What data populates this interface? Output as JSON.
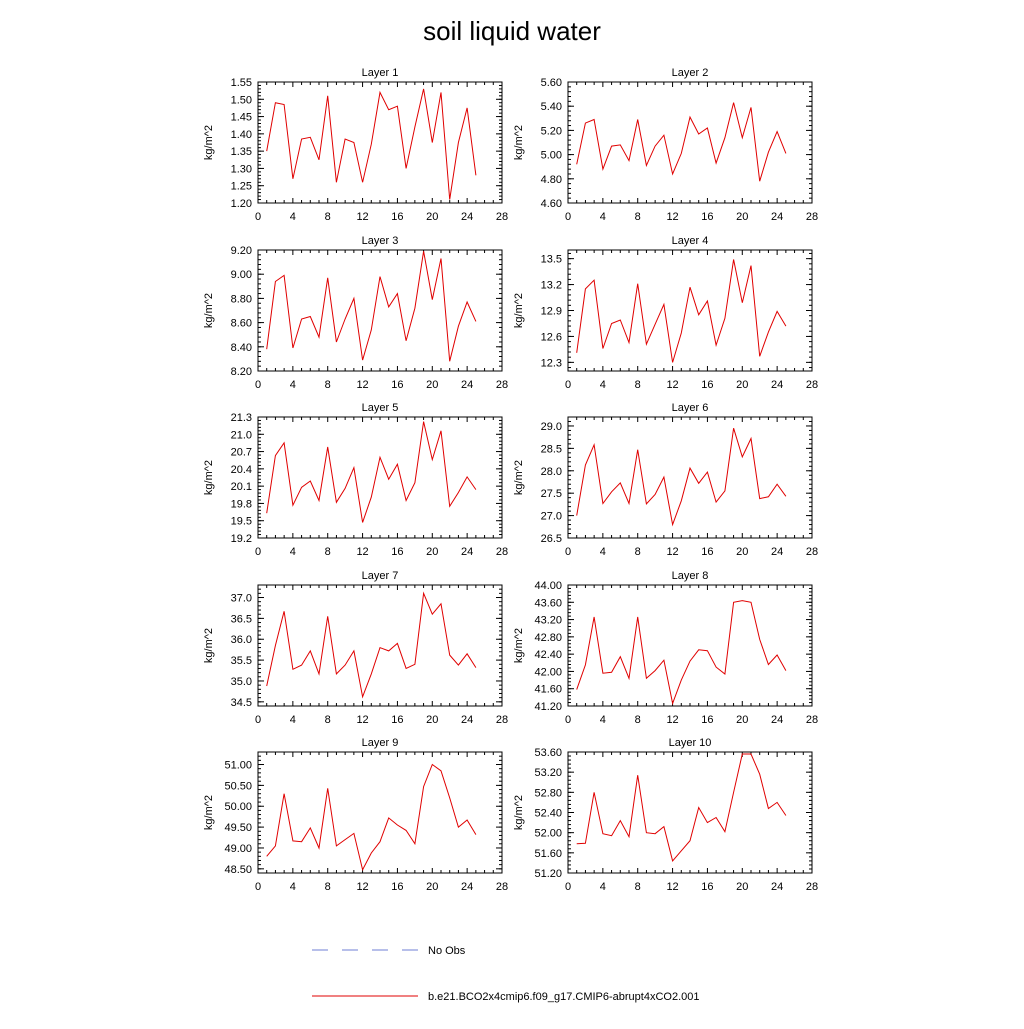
{
  "figure": {
    "title": "soil liquid water",
    "legend": [
      {
        "label": "No Obs",
        "color": "#6f7fd6",
        "style": "dashed"
      },
      {
        "label": "b.e21.BCO2x4cmip6.f09_g17.CMIP6-abrupt4xCO2.001",
        "color": "#e00000",
        "style": "solid"
      }
    ]
  },
  "chart_data": [
    {
      "type": "line",
      "title": "Layer 1",
      "ylabel": "kg/m^2",
      "xlim": [
        0,
        28
      ],
      "xticks": [
        "0",
        "4",
        "8",
        "12",
        "16",
        "20",
        "24",
        "28"
      ],
      "ylim": [
        1.2,
        1.55
      ],
      "yticks": [
        "1.20",
        "1.25",
        "1.30",
        "1.35",
        "1.40",
        "1.45",
        "1.50",
        "1.55"
      ],
      "series": [
        {
          "color": "#e00000",
          "x": [
            1,
            2,
            3,
            4,
            5,
            6,
            7,
            8,
            9,
            10,
            11,
            12,
            13,
            14,
            15,
            16,
            17,
            18,
            19,
            20,
            21,
            22,
            23,
            24,
            25
          ],
          "y": [
            1.35,
            1.49,
            1.485,
            1.27,
            1.385,
            1.39,
            1.325,
            1.51,
            1.26,
            1.385,
            1.375,
            1.26,
            1.37,
            1.52,
            1.47,
            1.48,
            1.3,
            1.42,
            1.53,
            1.375,
            1.52,
            1.21,
            1.375,
            1.475,
            1.28
          ]
        }
      ]
    },
    {
      "type": "line",
      "title": "Layer 2",
      "ylabel": "kg/m^2",
      "xlim": [
        0,
        28
      ],
      "xticks": [
        "0",
        "4",
        "8",
        "12",
        "16",
        "20",
        "24",
        "28"
      ],
      "ylim": [
        4.6,
        5.6
      ],
      "yticks": [
        "4.60",
        "4.80",
        "5.00",
        "5.20",
        "5.40",
        "5.60"
      ],
      "series": [
        {
          "color": "#e00000",
          "x": [
            1,
            2,
            3,
            4,
            5,
            6,
            7,
            8,
            9,
            10,
            11,
            12,
            13,
            14,
            15,
            16,
            17,
            18,
            19,
            20,
            21,
            22,
            23,
            24,
            25
          ],
          "y": [
            4.92,
            5.26,
            5.29,
            4.88,
            5.07,
            5.08,
            4.95,
            5.29,
            4.91,
            5.07,
            5.16,
            4.84,
            5.01,
            5.31,
            5.17,
            5.22,
            4.93,
            5.14,
            5.43,
            5.14,
            5.39,
            4.78,
            5.02,
            5.19,
            5.01
          ]
        }
      ]
    },
    {
      "type": "line",
      "title": "Layer 3",
      "ylabel": "kg/m^2",
      "xlim": [
        0,
        28
      ],
      "xticks": [
        "0",
        "4",
        "8",
        "12",
        "16",
        "20",
        "24",
        "28"
      ],
      "ylim": [
        8.2,
        9.2
      ],
      "yticks": [
        "8.20",
        "8.40",
        "8.60",
        "8.80",
        "9.00",
        "9.20"
      ],
      "series": [
        {
          "color": "#e00000",
          "x": [
            1,
            2,
            3,
            4,
            5,
            6,
            7,
            8,
            9,
            10,
            11,
            12,
            13,
            14,
            15,
            16,
            17,
            18,
            19,
            20,
            21,
            22,
            23,
            24,
            25
          ],
          "y": [
            8.38,
            8.94,
            8.99,
            8.39,
            8.63,
            8.65,
            8.48,
            8.97,
            8.44,
            8.63,
            8.8,
            8.29,
            8.54,
            8.98,
            8.73,
            8.84,
            8.45,
            8.72,
            9.19,
            8.79,
            9.13,
            8.28,
            8.57,
            8.77,
            8.61
          ]
        }
      ]
    },
    {
      "type": "line",
      "title": "Layer 4",
      "ylabel": "kg/m^2",
      "xlim": [
        0,
        28
      ],
      "xticks": [
        "0",
        "4",
        "8",
        "12",
        "16",
        "20",
        "24",
        "28"
      ],
      "ylim": [
        12.2,
        13.6
      ],
      "yticks": [
        "12.3",
        "12.6",
        "12.9",
        "13.2",
        "13.5"
      ],
      "series": [
        {
          "color": "#e00000",
          "x": [
            1,
            2,
            3,
            4,
            5,
            6,
            7,
            8,
            9,
            10,
            11,
            12,
            13,
            14,
            15,
            16,
            17,
            18,
            19,
            20,
            21,
            22,
            23,
            24,
            25
          ],
          "y": [
            12.41,
            13.15,
            13.25,
            12.46,
            12.75,
            12.79,
            12.53,
            13.21,
            12.51,
            12.74,
            12.97,
            12.3,
            12.64,
            13.17,
            12.85,
            13.01,
            12.5,
            12.81,
            13.49,
            12.99,
            13.42,
            12.37,
            12.65,
            12.89,
            12.72
          ]
        }
      ]
    },
    {
      "type": "line",
      "title": "Layer 5",
      "ylabel": "kg/m^2",
      "xlim": [
        0,
        28
      ],
      "xticks": [
        "0",
        "4",
        "8",
        "12",
        "16",
        "20",
        "24",
        "28"
      ],
      "ylim": [
        19.2,
        21.3
      ],
      "yticks": [
        "19.2",
        "19.5",
        "19.8",
        "20.1",
        "20.4",
        "20.7",
        "21.0",
        "21.3"
      ],
      "series": [
        {
          "color": "#e00000",
          "x": [
            1,
            2,
            3,
            4,
            5,
            6,
            7,
            8,
            9,
            10,
            11,
            12,
            13,
            14,
            15,
            16,
            17,
            18,
            19,
            20,
            21,
            22,
            23,
            24,
            25
          ],
          "y": [
            19.63,
            20.63,
            20.85,
            19.77,
            20.08,
            20.19,
            19.85,
            20.78,
            19.82,
            20.06,
            20.42,
            19.47,
            19.91,
            20.6,
            20.22,
            20.48,
            19.85,
            20.16,
            21.22,
            20.56,
            21.06,
            19.75,
            19.99,
            20.26,
            20.04
          ]
        }
      ]
    },
    {
      "type": "line",
      "title": "Layer 6",
      "ylabel": "kg/m^2",
      "xlim": [
        0,
        28
      ],
      "xticks": [
        "0",
        "4",
        "8",
        "12",
        "16",
        "20",
        "24",
        "28"
      ],
      "ylim": [
        26.5,
        29.2
      ],
      "yticks": [
        "26.5",
        "27.0",
        "27.5",
        "28.0",
        "28.5",
        "29.0"
      ],
      "series": [
        {
          "color": "#e00000",
          "x": [
            1,
            2,
            3,
            4,
            5,
            6,
            7,
            8,
            9,
            10,
            11,
            12,
            13,
            14,
            15,
            16,
            17,
            18,
            19,
            20,
            21,
            22,
            23,
            24,
            25
          ],
          "y": [
            27.0,
            28.13,
            28.58,
            27.27,
            27.53,
            27.73,
            27.27,
            28.47,
            27.26,
            27.47,
            27.86,
            26.8,
            27.33,
            28.06,
            27.72,
            27.97,
            27.3,
            27.55,
            28.95,
            28.31,
            28.72,
            27.38,
            27.42,
            27.7,
            27.43
          ]
        }
      ]
    },
    {
      "type": "line",
      "title": "Layer 7",
      "ylabel": "kg/m^2",
      "xlim": [
        0,
        28
      ],
      "xticks": [
        "0",
        "4",
        "8",
        "12",
        "16",
        "20",
        "24",
        "28"
      ],
      "ylim": [
        34.4,
        37.3
      ],
      "yticks": [
        "34.5",
        "35.0",
        "35.5",
        "36.0",
        "36.5",
        "37.0"
      ],
      "series": [
        {
          "color": "#e00000",
          "x": [
            1,
            2,
            3,
            4,
            5,
            6,
            7,
            8,
            9,
            10,
            11,
            12,
            13,
            14,
            15,
            16,
            17,
            18,
            19,
            20,
            21,
            22,
            23,
            24,
            25
          ],
          "y": [
            34.88,
            35.85,
            36.67,
            35.28,
            35.38,
            35.72,
            35.17,
            36.55,
            35.17,
            35.38,
            35.72,
            34.62,
            35.17,
            35.8,
            35.72,
            35.9,
            35.3,
            35.4,
            37.1,
            36.6,
            36.85,
            35.62,
            35.38,
            35.65,
            35.32
          ]
        }
      ]
    },
    {
      "type": "line",
      "title": "Layer 8",
      "ylabel": "kg/m^2",
      "xlim": [
        0,
        28
      ],
      "xticks": [
        "0",
        "4",
        "8",
        "12",
        "16",
        "20",
        "24",
        "28"
      ],
      "ylim": [
        41.2,
        44.0
      ],
      "yticks": [
        "41.20",
        "41.60",
        "42.00",
        "42.40",
        "42.80",
        "43.20",
        "43.60",
        "44.00"
      ],
      "series": [
        {
          "color": "#e00000",
          "x": [
            1,
            2,
            3,
            4,
            5,
            6,
            7,
            8,
            9,
            10,
            11,
            12,
            13,
            14,
            15,
            16,
            17,
            18,
            19,
            20,
            21,
            22,
            23,
            24,
            25
          ],
          "y": [
            41.58,
            42.15,
            43.26,
            41.96,
            41.98,
            42.34,
            41.84,
            43.26,
            41.84,
            42.02,
            42.26,
            41.26,
            41.8,
            42.24,
            42.5,
            42.48,
            42.1,
            41.94,
            43.6,
            43.64,
            43.6,
            42.74,
            42.16,
            42.38,
            42.02
          ]
        }
      ]
    },
    {
      "type": "line",
      "title": "Layer 9",
      "ylabel": "kg/m^2",
      "xlim": [
        0,
        28
      ],
      "xticks": [
        "0",
        "4",
        "8",
        "12",
        "16",
        "20",
        "24",
        "28"
      ],
      "ylim": [
        48.4,
        51.3
      ],
      "yticks": [
        "48.50",
        "49.00",
        "49.50",
        "50.00",
        "50.50",
        "51.00"
      ],
      "series": [
        {
          "color": "#e00000",
          "x": [
            1,
            2,
            3,
            4,
            5,
            6,
            7,
            8,
            9,
            10,
            11,
            12,
            13,
            14,
            15,
            16,
            17,
            18,
            19,
            20,
            21,
            22,
            23,
            24,
            25
          ],
          "y": [
            48.8,
            49.05,
            50.3,
            49.17,
            49.15,
            49.48,
            49.0,
            50.43,
            49.05,
            49.2,
            49.35,
            48.48,
            48.88,
            49.15,
            49.72,
            49.55,
            49.42,
            49.1,
            50.47,
            51.0,
            50.85,
            50.2,
            49.5,
            49.67,
            49.32
          ]
        }
      ]
    },
    {
      "type": "line",
      "title": "Layer 10",
      "ylabel": "kg/m^2",
      "xlim": [
        0,
        28
      ],
      "xticks": [
        "0",
        "4",
        "8",
        "12",
        "16",
        "20",
        "24",
        "28"
      ],
      "ylim": [
        51.2,
        53.6
      ],
      "yticks": [
        "51.20",
        "51.60",
        "52.00",
        "52.40",
        "52.80",
        "53.20",
        "53.60"
      ],
      "series": [
        {
          "color": "#e00000",
          "x": [
            1,
            2,
            3,
            4,
            5,
            6,
            7,
            8,
            9,
            10,
            11,
            12,
            13,
            14,
            15,
            16,
            17,
            18,
            19,
            20,
            21,
            22,
            23,
            24,
            25
          ],
          "y": [
            51.78,
            51.79,
            52.8,
            51.98,
            51.94,
            52.24,
            51.92,
            53.14,
            52.0,
            51.98,
            52.12,
            51.44,
            51.64,
            51.84,
            52.5,
            52.2,
            52.3,
            52.02,
            52.8,
            53.56,
            53.56,
            53.16,
            52.48,
            52.6,
            52.34
          ]
        }
      ]
    }
  ]
}
